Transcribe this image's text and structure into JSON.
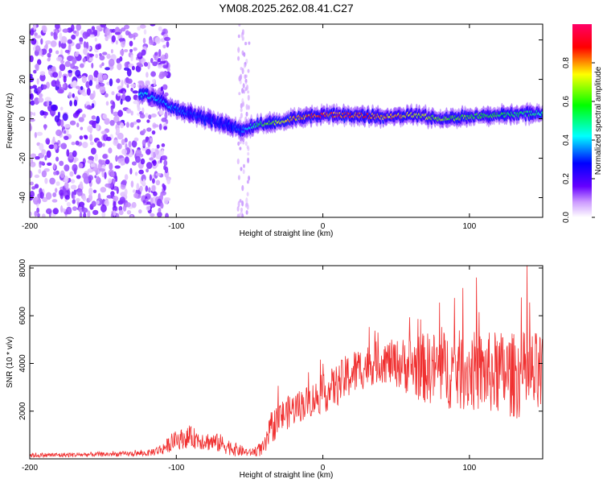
{
  "title": "YM08.2025.262.08.41.C27",
  "chart_data": [
    {
      "type": "heatmap",
      "xlabel": "Height of straight line (km)",
      "ylabel": "Frequency (Hz)",
      "xlim": [
        -200,
        150
      ],
      "ylim": [
        -50,
        48
      ],
      "xticks": [
        -200,
        -100,
        0,
        100
      ],
      "yticks": [
        -40,
        -20,
        0,
        20,
        40
      ],
      "colorbar": {
        "label": "Normalized spectral amplitude",
        "range": [
          0,
          1
        ],
        "ticks": [
          "0.0",
          "0.2",
          "0.4",
          "0.6",
          "0.8"
        ],
        "colormap": [
          "#ffffff",
          "#cc99ff",
          "#6600ff",
          "#0000ff",
          "#00ffff",
          "#00ff00",
          "#ffff00",
          "#ff0000",
          "#ff0066"
        ]
      },
      "ridge": {
        "x": [
          -120,
          -100,
          -80,
          -65,
          -55,
          -45,
          -35,
          -20,
          0,
          20,
          40,
          60,
          80,
          100,
          120,
          150
        ],
        "frequency": [
          12,
          5,
          0,
          -3,
          -6,
          -3,
          -2,
          0,
          2,
          2,
          1,
          2,
          0,
          1,
          2,
          3
        ],
        "amplitude": [
          0.45,
          0.35,
          0.3,
          0.3,
          0.35,
          0.55,
          0.7,
          0.8,
          0.9,
          0.9,
          0.85,
          0.75,
          0.7,
          0.65,
          0.6,
          0.5
        ]
      },
      "grid": false
    },
    {
      "type": "line",
      "xlabel": "Height of straight line (km)",
      "ylabel": "SNR (10 * v/v)",
      "xlim": [
        -200,
        150
      ],
      "ylim": [
        0,
        8100
      ],
      "xticks": [
        -200,
        -100,
        0,
        100
      ],
      "yticks": [
        2000,
        4000,
        6000,
        8000
      ],
      "series": [
        {
          "color": "#f03030",
          "x": [
            -200,
            -180,
            -160,
            -140,
            -120,
            -110,
            -100,
            -90,
            -80,
            -70,
            -60,
            -50,
            -40,
            -35,
            -30,
            -20,
            -10,
            0,
            10,
            20,
            30,
            40,
            50,
            60,
            70,
            80,
            90,
            100,
            110,
            120,
            130,
            140,
            150
          ],
          "mean": [
            150,
            160,
            180,
            200,
            230,
            400,
            800,
            900,
            750,
            650,
            400,
            250,
            450,
            1300,
            1700,
            2100,
            2400,
            2700,
            3100,
            3600,
            3900,
            4100,
            4000,
            3900,
            3800,
            3800,
            3700,
            3700,
            3600,
            3600,
            3500,
            3500,
            3400
          ],
          "spread": [
            100,
            100,
            100,
            100,
            120,
            250,
            400,
            450,
            400,
            400,
            300,
            150,
            350,
            700,
            700,
            700,
            700,
            800,
            900,
            1000,
            900,
            900,
            1000,
            1300,
            1500,
            1600,
            1700,
            1700,
            1700,
            1800,
            1800,
            1900,
            1900
          ]
        }
      ],
      "grid": false
    }
  ]
}
